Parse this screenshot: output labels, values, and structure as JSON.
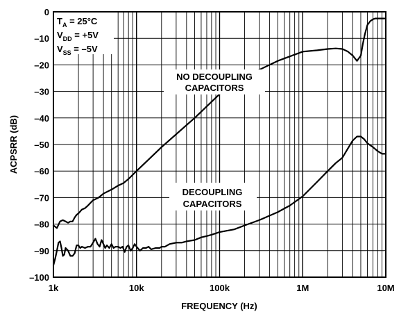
{
  "chart_data": {
    "type": "line",
    "title": "",
    "xlabel": "FREQUENCY (Hz)",
    "ylabel": "ACPSRR (dB)",
    "x_scale": "log",
    "xlim": [
      1000,
      10000000
    ],
    "ylim": [
      -100,
      0
    ],
    "y_ticks": [
      0,
      -10,
      -20,
      -30,
      -40,
      -50,
      -60,
      -70,
      -80,
      -90,
      -100
    ],
    "y_tick_labels": [
      "0",
      "–10",
      "–20",
      "–30",
      "–40",
      "–50",
      "–60",
      "–70",
      "–80",
      "–90",
      "–100"
    ],
    "x_ticks": [
      1000,
      10000,
      100000,
      1000000,
      10000000
    ],
    "x_tick_labels": [
      "1k",
      "10k",
      "100k",
      "1M",
      "10M"
    ],
    "grid": true,
    "conditions": {
      "ta": {
        "main": "T",
        "sub": "A",
        "value": " = 25°C"
      },
      "vdd": {
        "main": "V",
        "sub": "DD",
        "value": " = +5V"
      },
      "vss": {
        "main": "V",
        "sub": "SS",
        "value": " = –5V"
      }
    },
    "annotations": {
      "no_decoupling": [
        "NO DECOUPLING",
        "CAPACITORS"
      ],
      "decoupling": [
        "DECOUPLING",
        "CAPACITORS"
      ]
    },
    "series": [
      {
        "id": "no-decoupling",
        "x": [
          1000,
          1100,
          1200,
          1300,
          1400,
          1500,
          1600,
          1700,
          1800,
          1900,
          2000,
          2200,
          2400,
          2600,
          3000,
          3500,
          4000,
          5000,
          6000,
          7000,
          8000,
          10000,
          20000,
          50000,
          100000,
          200000,
          500000,
          1000000,
          1500000,
          2000000,
          2500000,
          3000000,
          3500000,
          4000000,
          4500000,
          5000000,
          5300000,
          5600000,
          6000000,
          6500000,
          7000000,
          7500000,
          8000000,
          9000000,
          10000000
        ],
        "y": [
          -80.5,
          -81.5,
          -79,
          -78.5,
          -79,
          -79.5,
          -79,
          -79,
          -77.5,
          -76.5,
          -76,
          -74.5,
          -74,
          -73,
          -71,
          -70,
          -68.5,
          -67,
          -65.5,
          -64.5,
          -63,
          -60,
          -51,
          -40,
          -31,
          -24.5,
          -18.5,
          -15,
          -14.5,
          -14,
          -13.8,
          -14,
          -15,
          -16.5,
          -18.5,
          -16.5,
          -12,
          -8.5,
          -5,
          -3.5,
          -2.8,
          -2.5,
          -2.5,
          -2.5,
          -2.5
        ]
      },
      {
        "id": "decoupling",
        "x": [
          1000,
          1050,
          1100,
          1150,
          1200,
          1250,
          1300,
          1350,
          1400,
          1500,
          1600,
          1700,
          1800,
          1900,
          2000,
          2100,
          2200,
          2400,
          2600,
          2800,
          3000,
          3200,
          3400,
          3600,
          3800,
          4000,
          4200,
          4400,
          4700,
          5000,
          5300,
          5600,
          6000,
          6400,
          6800,
          7200,
          7600,
          8000,
          8500,
          9000,
          9500,
          10000,
          11000,
          12000,
          13000,
          14000,
          15000,
          17000,
          19000,
          20000,
          22000,
          25000,
          30000,
          35000,
          40000,
          50000,
          60000,
          70000,
          80000,
          100000,
          150000,
          200000,
          300000,
          500000,
          700000,
          1000000,
          1500000,
          2000000,
          2500000,
          3000000,
          3500000,
          4000000,
          4500000,
          5000000,
          5500000,
          6000000,
          7000000,
          8000000,
          9000000,
          10000000
        ],
        "y": [
          -95.5,
          -93,
          -90,
          -87,
          -86.5,
          -89,
          -92,
          -91.5,
          -89,
          -90,
          -92,
          -92,
          -91,
          -88,
          -88,
          -89,
          -88.5,
          -89,
          -88.5,
          -88.5,
          -87,
          -85.5,
          -87.5,
          -88.5,
          -86,
          -87.5,
          -89,
          -88,
          -89,
          -87.5,
          -89,
          -88.5,
          -88.5,
          -89,
          -88.5,
          -90.5,
          -88.5,
          -88,
          -90,
          -89,
          -87.5,
          -88.5,
          -90,
          -89,
          -89,
          -88.5,
          -89.5,
          -89,
          -89,
          -88.5,
          -88.5,
          -87.5,
          -87,
          -87,
          -86.5,
          -86,
          -85,
          -84.5,
          -84,
          -83,
          -82,
          -80.5,
          -78.5,
          -75.5,
          -73,
          -69.5,
          -64,
          -60,
          -57,
          -55,
          -51.5,
          -48.5,
          -47,
          -47,
          -48,
          -49.5,
          -51,
          -52.5,
          -53.5,
          -53.5
        ]
      }
    ]
  }
}
